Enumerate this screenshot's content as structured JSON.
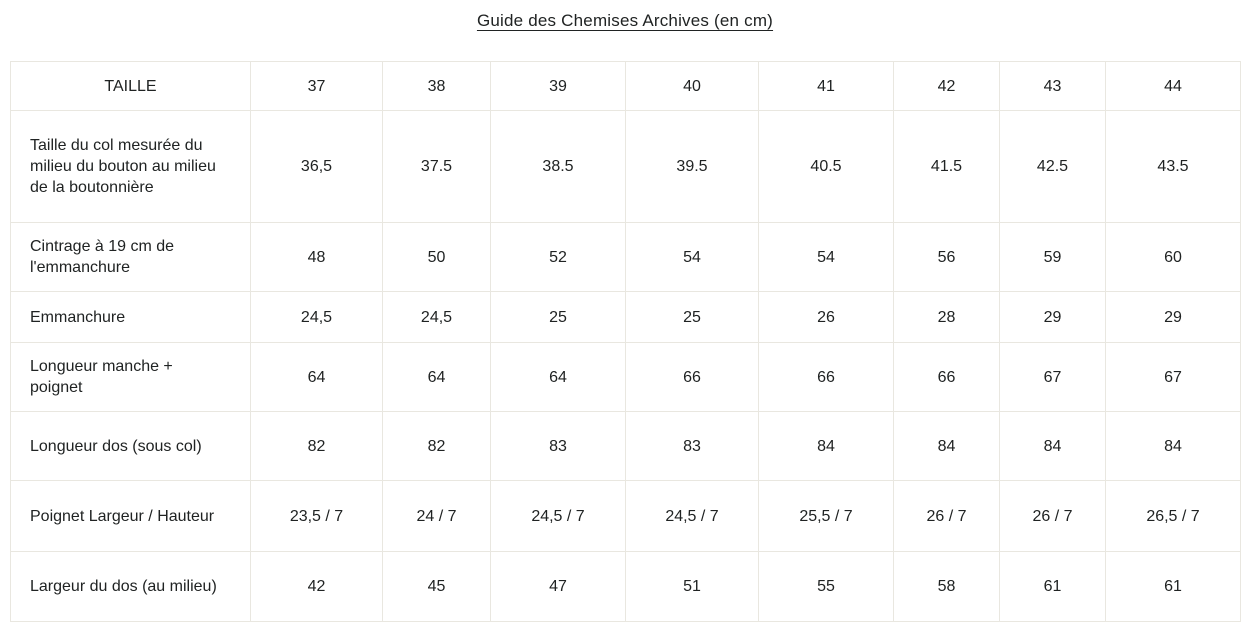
{
  "page": {
    "title": "Guide des Chemises Archives (en cm)"
  },
  "colors": {
    "background": "#ffffff",
    "border": "#e9e7e0",
    "text": "#202323"
  },
  "table": {
    "header": [
      "TAILLE",
      "37",
      "38",
      "39",
      "40",
      "41",
      "42",
      "43",
      "44"
    ],
    "rows": [
      {
        "label": "Taille du col mesurée du milieu du bouton au milieu de la boutonnière",
        "values": [
          "36,5",
          "37.5",
          "38.5",
          "39.5",
          "40.5",
          "41.5",
          "42.5",
          "43.5"
        ]
      },
      {
        "label": "Cintrage à 19 cm de l'emmanchure",
        "values": [
          "48",
          "50",
          "52",
          "54",
          "54",
          "56",
          "59",
          "60"
        ]
      },
      {
        "label": "Emmanchure",
        "values": [
          "24,5",
          "24,5",
          "25",
          "25",
          "26",
          "28",
          "29",
          "29"
        ]
      },
      {
        "label": "Longueur manche + poignet",
        "values": [
          "64",
          "64",
          "64",
          "66",
          "66",
          "66",
          "67",
          "67"
        ]
      },
      {
        "label": "Longueur dos (sous col)",
        "values": [
          "82",
          "82",
          "83",
          "83",
          "84",
          "84",
          "84",
          "84"
        ]
      },
      {
        "label": "Poignet Largeur / Hauteur",
        "values": [
          "23,5 / 7",
          "24 / 7",
          "24,5 / 7",
          "24,5 / 7",
          "25,5 / 7",
          "26 / 7",
          "26 / 7",
          "26,5 / 7"
        ]
      },
      {
        "label": "Largeur du dos (au milieu)",
        "values": [
          "42",
          "45",
          "47",
          "51",
          "55",
          "58",
          "61",
          "61"
        ]
      }
    ]
  }
}
